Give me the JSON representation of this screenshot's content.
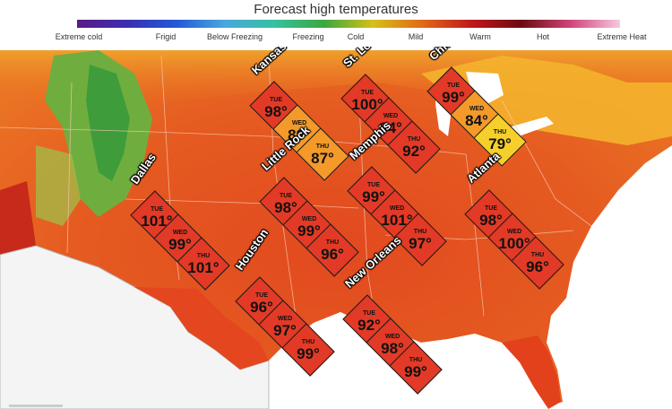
{
  "title": "Forecast high temperatures",
  "legend": {
    "labels": [
      "Extreme cold",
      "Frigid",
      "Below Freezing",
      "Freezing",
      "Cold",
      "Mild",
      "Warm",
      "Hot",
      "Extreme Heat"
    ],
    "colors": [
      "#5b1a86",
      "#3a2fb0",
      "#2258d6",
      "#4aa8de",
      "#35c0a0",
      "#3aa83e",
      "#d6c019",
      "#e06a18",
      "#c0181c",
      "#6b0b10",
      "#d0447a",
      "#f4c9e0"
    ]
  },
  "temperature_colors": {
    "hot": "#e23a26",
    "warm": "#f39a2a",
    "mild_warm": "#f6cf2b",
    "land": "#e8551f",
    "mountains": "#5aa63a"
  },
  "cities": [
    {
      "name": "Kansas City",
      "forecast": [
        {
          "day": "TUE",
          "temp": "98°"
        },
        {
          "day": "WED",
          "temp": "89°"
        },
        {
          "day": "THU",
          "temp": "87°"
        }
      ]
    },
    {
      "name": "St. Louis",
      "forecast": [
        {
          "day": "TUE",
          "temp": "100°"
        },
        {
          "day": "WED",
          "temp": "94°"
        },
        {
          "day": "THU",
          "temp": "92°"
        }
      ]
    },
    {
      "name": "Chicago",
      "forecast": [
        {
          "day": "TUE",
          "temp": "99°"
        },
        {
          "day": "WED",
          "temp": "84°"
        },
        {
          "day": "THU",
          "temp": "79°"
        }
      ]
    },
    {
      "name": "Dallas",
      "forecast": [
        {
          "day": "TUE",
          "temp": "101°"
        },
        {
          "day": "WED",
          "temp": "99°"
        },
        {
          "day": "THU",
          "temp": "101°"
        }
      ]
    },
    {
      "name": "Little Rock",
      "forecast": [
        {
          "day": "TUE",
          "temp": "98°"
        },
        {
          "day": "WED",
          "temp": "99°"
        },
        {
          "day": "THU",
          "temp": "96°"
        }
      ]
    },
    {
      "name": "Memphis",
      "forecast": [
        {
          "day": "TUE",
          "temp": "99°"
        },
        {
          "day": "WED",
          "temp": "101°"
        },
        {
          "day": "THU",
          "temp": "97°"
        }
      ]
    },
    {
      "name": "Atlanta",
      "forecast": [
        {
          "day": "TUE",
          "temp": "98°"
        },
        {
          "day": "WED",
          "temp": "100°"
        },
        {
          "day": "THU",
          "temp": "96°"
        }
      ]
    },
    {
      "name": "Houston",
      "forecast": [
        {
          "day": "TUE",
          "temp": "96°"
        },
        {
          "day": "WED",
          "temp": "97°"
        },
        {
          "day": "THU",
          "temp": "99°"
        }
      ]
    },
    {
      "name": "New Orleans",
      "forecast": [
        {
          "day": "TUE",
          "temp": "92°"
        },
        {
          "day": "WED",
          "temp": "98°"
        },
        {
          "day": "THU",
          "temp": "99°"
        }
      ]
    }
  ]
}
